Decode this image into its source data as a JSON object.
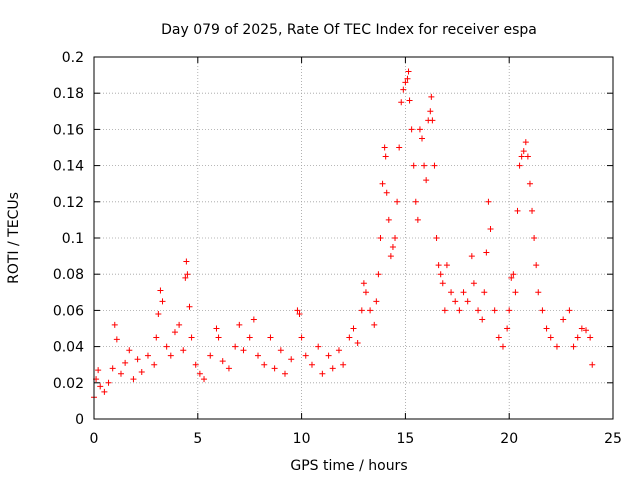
{
  "chart_data": {
    "type": "scatter",
    "title": "Day 079 of 2025, Rate Of TEC Index for receiver espa",
    "xlabel": "GPS time / hours",
    "ylabel": "ROTI / TECUs",
    "xlim": [
      0,
      25
    ],
    "ylim": [
      0,
      0.2
    ],
    "x_ticks": [
      0,
      5,
      10,
      15,
      20,
      25
    ],
    "y_ticks": [
      0,
      0.02,
      0.04,
      0.06,
      0.08,
      0.1,
      0.12,
      0.14,
      0.16,
      0.18,
      0.2
    ],
    "x_tick_labels": [
      "0",
      "5",
      "10",
      "15",
      "20",
      "25"
    ],
    "y_tick_labels": [
      "0",
      "0.02",
      "0.04",
      "0.06",
      "0.08",
      "0.1",
      "0.12",
      "0.14",
      "0.16",
      "0.18",
      "0.2"
    ],
    "grid": true,
    "marker": "+",
    "series_color": "#ff0000",
    "series": [
      {
        "name": "ROTI",
        "points": [
          [
            0.0,
            0.012
          ],
          [
            0.1,
            0.022
          ],
          [
            0.2,
            0.027
          ],
          [
            0.3,
            0.018
          ],
          [
            0.5,
            0.015
          ],
          [
            0.7,
            0.02
          ],
          [
            0.9,
            0.028
          ],
          [
            1.0,
            0.052
          ],
          [
            1.1,
            0.044
          ],
          [
            1.3,
            0.025
          ],
          [
            1.5,
            0.031
          ],
          [
            1.7,
            0.038
          ],
          [
            1.9,
            0.022
          ],
          [
            2.1,
            0.033
          ],
          [
            2.3,
            0.026
          ],
          [
            2.6,
            0.035
          ],
          [
            2.9,
            0.03
          ],
          [
            3.0,
            0.045
          ],
          [
            3.1,
            0.058
          ],
          [
            3.2,
            0.071
          ],
          [
            3.3,
            0.065
          ],
          [
            3.5,
            0.04
          ],
          [
            3.7,
            0.035
          ],
          [
            3.9,
            0.048
          ],
          [
            4.1,
            0.052
          ],
          [
            4.3,
            0.038
          ],
          [
            4.4,
            0.078
          ],
          [
            4.45,
            0.087
          ],
          [
            4.5,
            0.08
          ],
          [
            4.6,
            0.062
          ],
          [
            4.7,
            0.045
          ],
          [
            4.9,
            0.03
          ],
          [
            5.1,
            0.025
          ],
          [
            5.3,
            0.022
          ],
          [
            5.6,
            0.035
          ],
          [
            5.9,
            0.05
          ],
          [
            6.0,
            0.045
          ],
          [
            6.2,
            0.032
          ],
          [
            6.5,
            0.028
          ],
          [
            6.8,
            0.04
          ],
          [
            7.0,
            0.052
          ],
          [
            7.2,
            0.038
          ],
          [
            7.5,
            0.045
          ],
          [
            7.7,
            0.055
          ],
          [
            7.9,
            0.035
          ],
          [
            8.2,
            0.03
          ],
          [
            8.5,
            0.045
          ],
          [
            8.7,
            0.028
          ],
          [
            9.0,
            0.038
          ],
          [
            9.2,
            0.025
          ],
          [
            9.5,
            0.033
          ],
          [
            9.8,
            0.06
          ],
          [
            9.9,
            0.058
          ],
          [
            10.0,
            0.045
          ],
          [
            10.2,
            0.035
          ],
          [
            10.5,
            0.03
          ],
          [
            10.8,
            0.04
          ],
          [
            11.0,
            0.025
          ],
          [
            11.3,
            0.035
          ],
          [
            11.5,
            0.028
          ],
          [
            11.8,
            0.038
          ],
          [
            12.0,
            0.03
          ],
          [
            12.3,
            0.045
          ],
          [
            12.5,
            0.05
          ],
          [
            12.7,
            0.042
          ],
          [
            12.9,
            0.06
          ],
          [
            13.0,
            0.075
          ],
          [
            13.1,
            0.07
          ],
          [
            13.3,
            0.06
          ],
          [
            13.5,
            0.052
          ],
          [
            13.6,
            0.065
          ],
          [
            13.7,
            0.08
          ],
          [
            13.8,
            0.1
          ],
          [
            13.9,
            0.13
          ],
          [
            14.0,
            0.15
          ],
          [
            14.05,
            0.145
          ],
          [
            14.1,
            0.125
          ],
          [
            14.2,
            0.11
          ],
          [
            14.3,
            0.09
          ],
          [
            14.4,
            0.095
          ],
          [
            14.5,
            0.1
          ],
          [
            14.6,
            0.12
          ],
          [
            14.7,
            0.15
          ],
          [
            14.8,
            0.175
          ],
          [
            14.9,
            0.182
          ],
          [
            15.0,
            0.186
          ],
          [
            15.1,
            0.188
          ],
          [
            15.15,
            0.192
          ],
          [
            15.2,
            0.176
          ],
          [
            15.3,
            0.16
          ],
          [
            15.4,
            0.14
          ],
          [
            15.5,
            0.12
          ],
          [
            15.6,
            0.11
          ],
          [
            15.7,
            0.16
          ],
          [
            15.8,
            0.155
          ],
          [
            15.9,
            0.14
          ],
          [
            16.0,
            0.132
          ],
          [
            16.1,
            0.165
          ],
          [
            16.2,
            0.17
          ],
          [
            16.25,
            0.178
          ],
          [
            16.3,
            0.165
          ],
          [
            16.4,
            0.14
          ],
          [
            16.5,
            0.1
          ],
          [
            16.6,
            0.085
          ],
          [
            16.7,
            0.08
          ],
          [
            16.8,
            0.075
          ],
          [
            16.9,
            0.06
          ],
          [
            17.0,
            0.085
          ],
          [
            17.2,
            0.07
          ],
          [
            17.4,
            0.065
          ],
          [
            17.6,
            0.06
          ],
          [
            17.8,
            0.07
          ],
          [
            18.0,
            0.065
          ],
          [
            18.2,
            0.09
          ],
          [
            18.3,
            0.075
          ],
          [
            18.5,
            0.06
          ],
          [
            18.7,
            0.055
          ],
          [
            18.8,
            0.07
          ],
          [
            18.9,
            0.092
          ],
          [
            19.0,
            0.12
          ],
          [
            19.1,
            0.105
          ],
          [
            19.3,
            0.06
          ],
          [
            19.5,
            0.045
          ],
          [
            19.7,
            0.04
          ],
          [
            19.9,
            0.05
          ],
          [
            20.0,
            0.06
          ],
          [
            20.1,
            0.078
          ],
          [
            20.2,
            0.08
          ],
          [
            20.3,
            0.07
          ],
          [
            20.4,
            0.115
          ],
          [
            20.5,
            0.14
          ],
          [
            20.6,
            0.145
          ],
          [
            20.7,
            0.148
          ],
          [
            20.8,
            0.153
          ],
          [
            20.9,
            0.145
          ],
          [
            21.0,
            0.13
          ],
          [
            21.1,
            0.115
          ],
          [
            21.2,
            0.1
          ],
          [
            21.3,
            0.085
          ],
          [
            21.4,
            0.07
          ],
          [
            21.6,
            0.06
          ],
          [
            21.8,
            0.05
          ],
          [
            22.0,
            0.045
          ],
          [
            22.3,
            0.04
          ],
          [
            22.6,
            0.055
          ],
          [
            22.9,
            0.06
          ],
          [
            23.1,
            0.04
          ],
          [
            23.3,
            0.045
          ],
          [
            23.5,
            0.05
          ],
          [
            23.7,
            0.049
          ],
          [
            23.9,
            0.045
          ],
          [
            24.0,
            0.03
          ]
        ]
      }
    ]
  }
}
